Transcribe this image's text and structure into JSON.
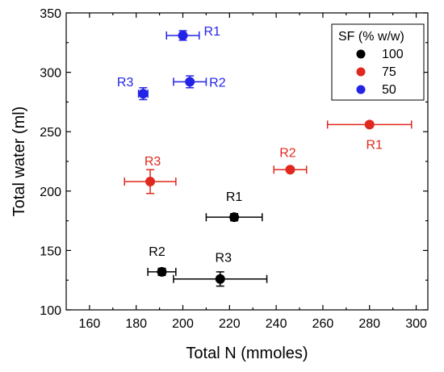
{
  "chart_data": {
    "type": "scatter",
    "xlabel": "Total N (mmoles)",
    "ylabel": "Total water (ml)",
    "xlim": [
      150,
      305
    ],
    "ylim": [
      100,
      350
    ],
    "x_ticks": [
      160,
      180,
      200,
      220,
      240,
      260,
      280,
      300
    ],
    "y_ticks": [
      100,
      150,
      200,
      250,
      300,
      350
    ],
    "grid": false,
    "legend": {
      "title": "SF (% w/w)",
      "placement": "top-right",
      "entries": [
        "100",
        "75",
        "50"
      ]
    },
    "series": [
      {
        "name": "100",
        "color": "#000000",
        "points": [
          {
            "label": "R1",
            "x": 222,
            "y": 178,
            "xerr": 12,
            "yerr": 3
          },
          {
            "label": "R2",
            "x": 191,
            "y": 132,
            "xerr": 6,
            "yerr": 3
          },
          {
            "label": "R3",
            "x": 216,
            "y": 126,
            "xerr": 20,
            "yerr": 6
          }
        ]
      },
      {
        "name": "75",
        "color": "#e0281e",
        "points": [
          {
            "label": "R1",
            "x": 280,
            "y": 256,
            "xerr": 18,
            "yerr": 2
          },
          {
            "label": "R2",
            "x": 246,
            "y": 218,
            "xerr": 7,
            "yerr": 2
          },
          {
            "label": "R3",
            "x": 186,
            "y": 208,
            "xerr": 11,
            "yerr": 10
          }
        ]
      },
      {
        "name": "50",
        "color": "#2323e6",
        "points": [
          {
            "label": "R1",
            "x": 200,
            "y": 331,
            "xerr": 7,
            "yerr": 4
          },
          {
            "label": "R2",
            "x": 203,
            "y": 292,
            "xerr": 7,
            "yerr": 5
          },
          {
            "label": "R3",
            "x": 183,
            "y": 282,
            "xerr": 2,
            "yerr": 5
          }
        ]
      }
    ]
  }
}
